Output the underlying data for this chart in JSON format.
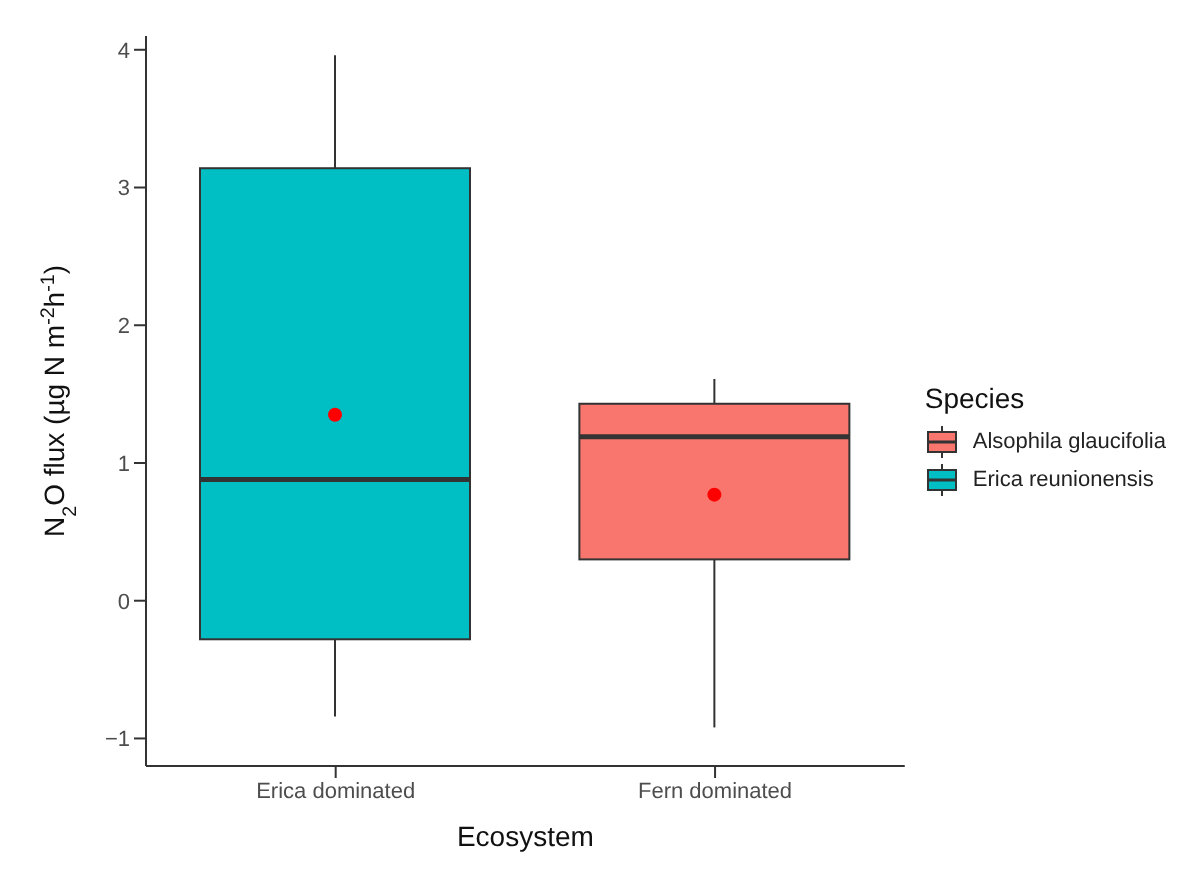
{
  "chart_data": {
    "type": "box",
    "xlabel": "Ecosystem",
    "ylabel": "N$_{2}$O flux (µg N m$^{-2}$h$^{-1}$)",
    "legend_title": "Species",
    "categories": [
      "Erica dominated",
      "Fern dominated"
    ],
    "series": [
      {
        "name": "Alsophila glaucifolia",
        "color": "#f8766d",
        "boxes": [
          null,
          {
            "low": -0.92,
            "q1": 0.3,
            "median": 1.19,
            "q3": 1.43,
            "high": 1.61,
            "mean": 0.77
          }
        ]
      },
      {
        "name": "Erica reunionensis",
        "color": "#00bfc4",
        "boxes": [
          {
            "low": -0.84,
            "q1": -0.28,
            "median": 0.88,
            "q3": 3.14,
            "high": 3.96,
            "mean": 1.35
          },
          null
        ]
      }
    ],
    "ylim": [
      -1.2,
      4.1
    ],
    "yticks": [
      -1,
      0,
      1,
      2,
      3,
      4
    ],
    "grid": false,
    "legend": "right"
  }
}
